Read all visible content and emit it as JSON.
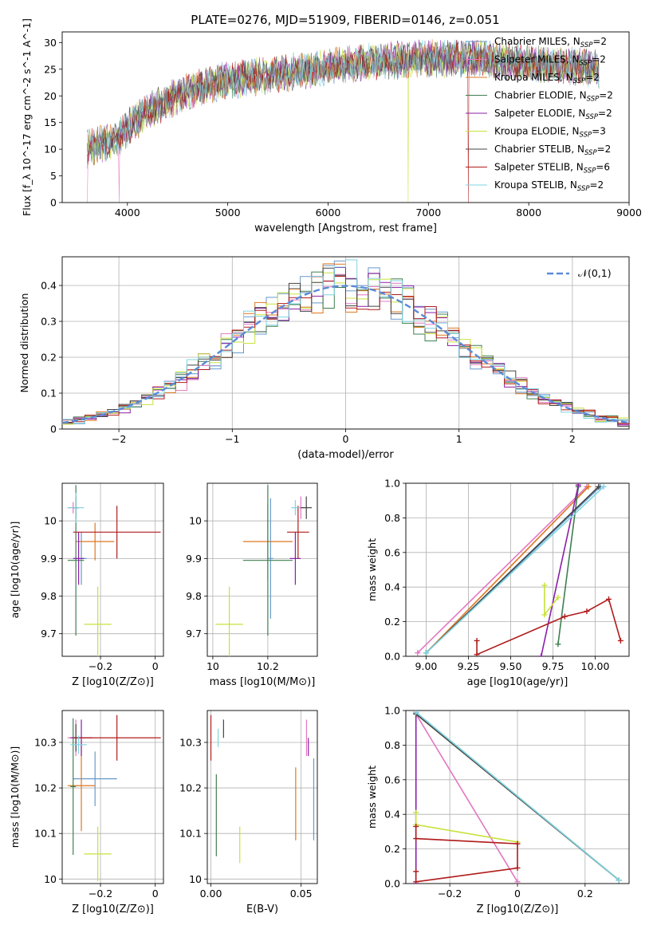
{
  "figure": {
    "title": "PLATE=0276, MJD=51909, FIBERID=0146, z=0.051"
  },
  "models": [
    {
      "name": "Chabrier MILES",
      "nssp": "2",
      "color": "#6699cc"
    },
    {
      "name": "Salpeter MILES",
      "nssp": "2",
      "color": "#e377c2"
    },
    {
      "name": "Kroupa MILES",
      "nssp": "2",
      "color": "#dd7722"
    },
    {
      "name": "Chabrier ELODIE",
      "nssp": "2",
      "color": "#3f7f4f"
    },
    {
      "name": "Salpeter ELODIE",
      "nssp": "2",
      "color": "#8b1fa8"
    },
    {
      "name": "Kroupa ELODIE",
      "nssp": "3",
      "color": "#c8e23c"
    },
    {
      "name": "Chabrier STELIB",
      "nssp": "2",
      "color": "#444444"
    },
    {
      "name": "Salpeter STELIB",
      "nssp": "6",
      "color": "#b01c1c"
    },
    {
      "name": "Kroupa STELIB",
      "nssp": "2",
      "color": "#7fd4e0"
    }
  ],
  "chart_data": [
    {
      "id": "spectrum",
      "type": "line",
      "xlabel": "wavelength [Angstrom, rest frame]",
      "ylabel": "Flux [f_λ 10^-17 erg cm^-2 s^-1 A^-1]",
      "xlim": [
        3350,
        9000
      ],
      "ylim": [
        0,
        32
      ],
      "xticks": [
        4000,
        5000,
        6000,
        7000,
        8000,
        9000
      ],
      "yticks": [
        0,
        5,
        10,
        15,
        20,
        25,
        30
      ],
      "grid": false,
      "legend_position": "top-right",
      "data_range": [
        3600,
        8700
      ],
      "continuum_anchors": [
        [
          3600,
          10
        ],
        [
          3900,
          12
        ],
        [
          4000,
          14
        ],
        [
          4200,
          17
        ],
        [
          4500,
          20
        ],
        [
          4800,
          22
        ],
        [
          5000,
          23
        ],
        [
          5500,
          24
        ],
        [
          6000,
          25.5
        ],
        [
          6500,
          26.5
        ],
        [
          7000,
          27
        ],
        [
          7500,
          27
        ],
        [
          8000,
          26
        ],
        [
          8500,
          25.5
        ],
        [
          8700,
          25
        ]
      ],
      "spikes": [
        [
          3600,
          0
        ],
        [
          3920,
          0
        ],
        [
          6800,
          0
        ],
        [
          7400,
          0
        ]
      ]
    },
    {
      "id": "residuals",
      "type": "histogram",
      "xlabel": "(data-model)/error",
      "ylabel": "Normed distribution",
      "xlim": [
        -2.5,
        2.5
      ],
      "ylim": [
        0,
        0.48
      ],
      "xticks": [
        -2,
        -1,
        0,
        1,
        2
      ],
      "yticks": [
        0,
        0.1,
        0.2,
        0.3,
        0.4
      ],
      "bin_width": 0.1,
      "grid": true,
      "legend": "𝒩(0,1)",
      "legend_position": "top-right"
    },
    {
      "id": "age-vs-z",
      "type": "scatter",
      "xlabel": "Z [log10(Z/Z⊙)]",
      "ylabel": "age  [log10(age/yr)]",
      "xlim": [
        -0.34,
        0.03
      ],
      "ylim": [
        9.64,
        10.1
      ],
      "xticks": [
        -0.2,
        0.0
      ],
      "yticks": [
        9.7,
        9.8,
        9.9,
        10.0
      ],
      "grid": true,
      "points": [
        {
          "x": -0.27,
          "y": 9.9,
          "xerr": 0.02,
          "yerr": 0.07
        },
        {
          "x": -0.3,
          "y": 10.035,
          "xerr": 0.02,
          "yerr": 0.015
        },
        {
          "x": -0.22,
          "y": 9.945,
          "xerr": 0.07,
          "yerr": 0.05
        },
        {
          "x": -0.29,
          "y": 9.895,
          "xerr": 0.03,
          "yerr": 0.2
        },
        {
          "x": -0.28,
          "y": 9.9,
          "xerr": 0.02,
          "yerr": 0.07
        },
        {
          "x": -0.21,
          "y": 9.725,
          "xerr": 0.05,
          "yerr": 0.1
        },
        {
          "x": -0.29,
          "y": 10.035,
          "xerr": 0.01,
          "yerr": 0.03
        },
        {
          "x": -0.14,
          "y": 9.97,
          "xerr": 0.16,
          "yerr": 0.07
        },
        {
          "x": -0.29,
          "y": 10.035,
          "xerr": 0.03,
          "yerr": 0.04
        }
      ]
    },
    {
      "id": "age-vs-mass",
      "type": "scatter",
      "xlabel": "mass [log10(M/M⊙)]",
      "ylabel": "",
      "xlim": [
        9.98,
        10.38
      ],
      "ylim": [
        9.64,
        10.1
      ],
      "xticks": [
        10.0,
        10.2
      ],
      "yticks": [
        9.7,
        9.8,
        9.9,
        10.0
      ],
      "grid": true,
      "points": [
        {
          "x": 10.21,
          "y": 9.9,
          "xerr": 0.01,
          "yerr": 0.16
        },
        {
          "x": 10.32,
          "y": 10.035,
          "xerr": 0.015,
          "yerr": 0.03
        },
        {
          "x": 10.2,
          "y": 9.945,
          "xerr": 0.09,
          "yerr": 0.1
        },
        {
          "x": 10.2,
          "y": 9.895,
          "xerr": 0.09,
          "yerr": 0.2
        },
        {
          "x": 10.3,
          "y": 9.9,
          "xerr": 0.02,
          "yerr": 0.07
        },
        {
          "x": 10.06,
          "y": 9.725,
          "xerr": 0.05,
          "yerr": 0.1
        },
        {
          "x": 10.34,
          "y": 10.035,
          "xerr": 0.02,
          "yerr": 0.03
        },
        {
          "x": 10.31,
          "y": 9.97,
          "xerr": 0.04,
          "yerr": 0.07
        },
        {
          "x": 10.3,
          "y": 10.035,
          "xerr": 0.015,
          "yerr": 0.02
        }
      ]
    },
    {
      "id": "weight-vs-age",
      "type": "line",
      "xlabel": "age  [log10(age/yr)]",
      "ylabel": "mass weight",
      "xlim": [
        8.88,
        10.2
      ],
      "ylim": [
        0,
        1
      ],
      "xticks": [
        9.0,
        9.25,
        9.5,
        9.75,
        10.0
      ],
      "xticklabels": [
        "9.00",
        "9.25",
        "9.50",
        "9.75",
        "10.00"
      ],
      "yticks": [
        0,
        0.2,
        0.4,
        0.6,
        0.8,
        1.0
      ],
      "grid": true,
      "series": [
        {
          "model": 0,
          "x": [
            9.0,
            10.03
          ],
          "y": [
            0.02,
            0.98
          ]
        },
        {
          "model": 1,
          "x": [
            8.95,
            9.95
          ],
          "y": [
            0.02,
            0.98
          ]
        },
        {
          "model": 2,
          "x": [
            9.0,
            9.96
          ],
          "y": [
            0.02,
            0.98
          ]
        },
        {
          "model": 3,
          "x": [
            9.78,
            9.9
          ],
          "y": [
            0.07,
            0.98
          ]
        },
        {
          "model": 4,
          "x": [
            9.68,
            9.9
          ],
          "y": [
            0.0,
            0.99
          ]
        },
        {
          "model": 5,
          "x": [
            9.7,
            9.7,
            9.78
          ],
          "y": [
            0.41,
            0.24,
            0.34
          ]
        },
        {
          "model": 6,
          "x": [
            9.0,
            10.02
          ],
          "y": [
            0.02,
            0.98
          ]
        },
        {
          "model": 7,
          "x": [
            9.3,
            9.3,
            9.82,
            9.95,
            10.08,
            10.15
          ],
          "y": [
            0.09,
            0.01,
            0.23,
            0.26,
            0.33,
            0.09
          ]
        },
        {
          "model": 8,
          "x": [
            9.0,
            10.05
          ],
          "y": [
            0.02,
            0.98
          ]
        }
      ]
    },
    {
      "id": "mass-vs-z",
      "type": "scatter",
      "xlabel": "Z [log10(Z/Z⊙)]",
      "ylabel": "mass [log10(M/M⊙)]",
      "xlim": [
        -0.34,
        0.03
      ],
      "ylim": [
        9.99,
        10.37
      ],
      "xticks": [
        -0.2,
        0.0
      ],
      "yticks": [
        10.0,
        10.1,
        10.2,
        10.3
      ],
      "grid": true,
      "points": [
        {
          "x": -0.22,
          "y": 10.22,
          "xerr": 0.08,
          "yerr": 0.06
        },
        {
          "x": -0.29,
          "y": 10.31,
          "xerr": 0.03,
          "yerr": 0.04
        },
        {
          "x": -0.27,
          "y": 10.205,
          "xerr": 0.05,
          "yerr": 0.1
        },
        {
          "x": -0.3,
          "y": 10.203,
          "xerr": 0.01,
          "yerr": 0.15
        },
        {
          "x": -0.27,
          "y": 10.31,
          "xerr": 0.04,
          "yerr": 0.04
        },
        {
          "x": -0.21,
          "y": 10.055,
          "xerr": 0.05,
          "yerr": 0.06
        },
        {
          "x": -0.29,
          "y": 10.31,
          "xerr": 0.01,
          "yerr": 0.03
        },
        {
          "x": -0.14,
          "y": 10.31,
          "xerr": 0.16,
          "yerr": 0.05
        },
        {
          "x": -0.28,
          "y": 10.295,
          "xerr": 0.03,
          "yerr": 0.02
        }
      ]
    },
    {
      "id": "mass-vs-ebv",
      "type": "scatter",
      "xlabel": "E(B-V)",
      "ylabel": "",
      "xlim": [
        -0.002,
        0.059
      ],
      "ylim": [
        9.99,
        10.37
      ],
      "xticks": [
        0.0,
        0.05
      ],
      "xticklabels": [
        "0.00",
        "0.05"
      ],
      "yticks": [
        10.0,
        10.1,
        10.2,
        10.3
      ],
      "grid": true,
      "points": [
        {
          "x": 0.057,
          "y": 10.175,
          "xerr": 0,
          "yerr": 0.09
        },
        {
          "x": 0.053,
          "y": 10.31,
          "xerr": 0,
          "yerr": 0.04
        },
        {
          "x": 0.047,
          "y": 10.165,
          "xerr": 0,
          "yerr": 0.08
        },
        {
          "x": 0.003,
          "y": 10.14,
          "xerr": 0,
          "yerr": 0.09
        },
        {
          "x": 0.054,
          "y": 10.29,
          "xerr": 0,
          "yerr": 0.02
        },
        {
          "x": 0.016,
          "y": 10.075,
          "xerr": 0,
          "yerr": 0.04
        },
        {
          "x": 0.007,
          "y": 10.33,
          "xerr": 0,
          "yerr": 0.02
        },
        {
          "x": 0.0,
          "y": 10.31,
          "xerr": 0,
          "yerr": 0.05
        },
        {
          "x": 0.004,
          "y": 10.31,
          "xerr": 0,
          "yerr": 0.02
        }
      ]
    },
    {
      "id": "weight-vs-z",
      "type": "line",
      "xlabel": "Z [log10(Z/Z⊙)]",
      "ylabel": "mass weight",
      "xlim": [
        -0.33,
        0.33
      ],
      "ylim": [
        0,
        1
      ],
      "xticks": [
        -0.2,
        0.0,
        0.2
      ],
      "yticks": [
        0,
        0.2,
        0.4,
        0.6,
        0.8,
        1.0
      ],
      "grid": true,
      "series": [
        {
          "model": 0,
          "x": [
            -0.3,
            0.3
          ],
          "y": [
            0.99,
            0.02
          ]
        },
        {
          "model": 1,
          "x": [
            -0.3,
            0.0
          ],
          "y": [
            0.98,
            0.01
          ]
        },
        {
          "model": 2,
          "x": [
            -0.3,
            0.3
          ],
          "y": [
            0.98,
            0.02
          ]
        },
        {
          "model": 3,
          "x": [
            -0.3,
            0.3
          ],
          "y": [
            0.98,
            0.02
          ]
        },
        {
          "model": 4,
          "x": [
            -0.3,
            -0.3
          ],
          "y": [
            0.0,
            0.99
          ]
        },
        {
          "model": 5,
          "x": [
            -0.3,
            -0.3,
            0.0
          ],
          "y": [
            0.41,
            0.34,
            0.24
          ]
        },
        {
          "model": 6,
          "x": [
            -0.3,
            0.3
          ],
          "y": [
            0.98,
            0.02
          ]
        },
        {
          "model": 7,
          "x": [
            -0.3,
            -0.3,
            0.0,
            0.0,
            -0.3,
            -0.3
          ],
          "y": [
            0.07,
            0.01,
            0.09,
            0.23,
            0.26,
            0.33
          ]
        },
        {
          "model": 8,
          "x": [
            -0.3,
            0.3
          ],
          "y": [
            0.99,
            0.02
          ]
        }
      ]
    }
  ]
}
